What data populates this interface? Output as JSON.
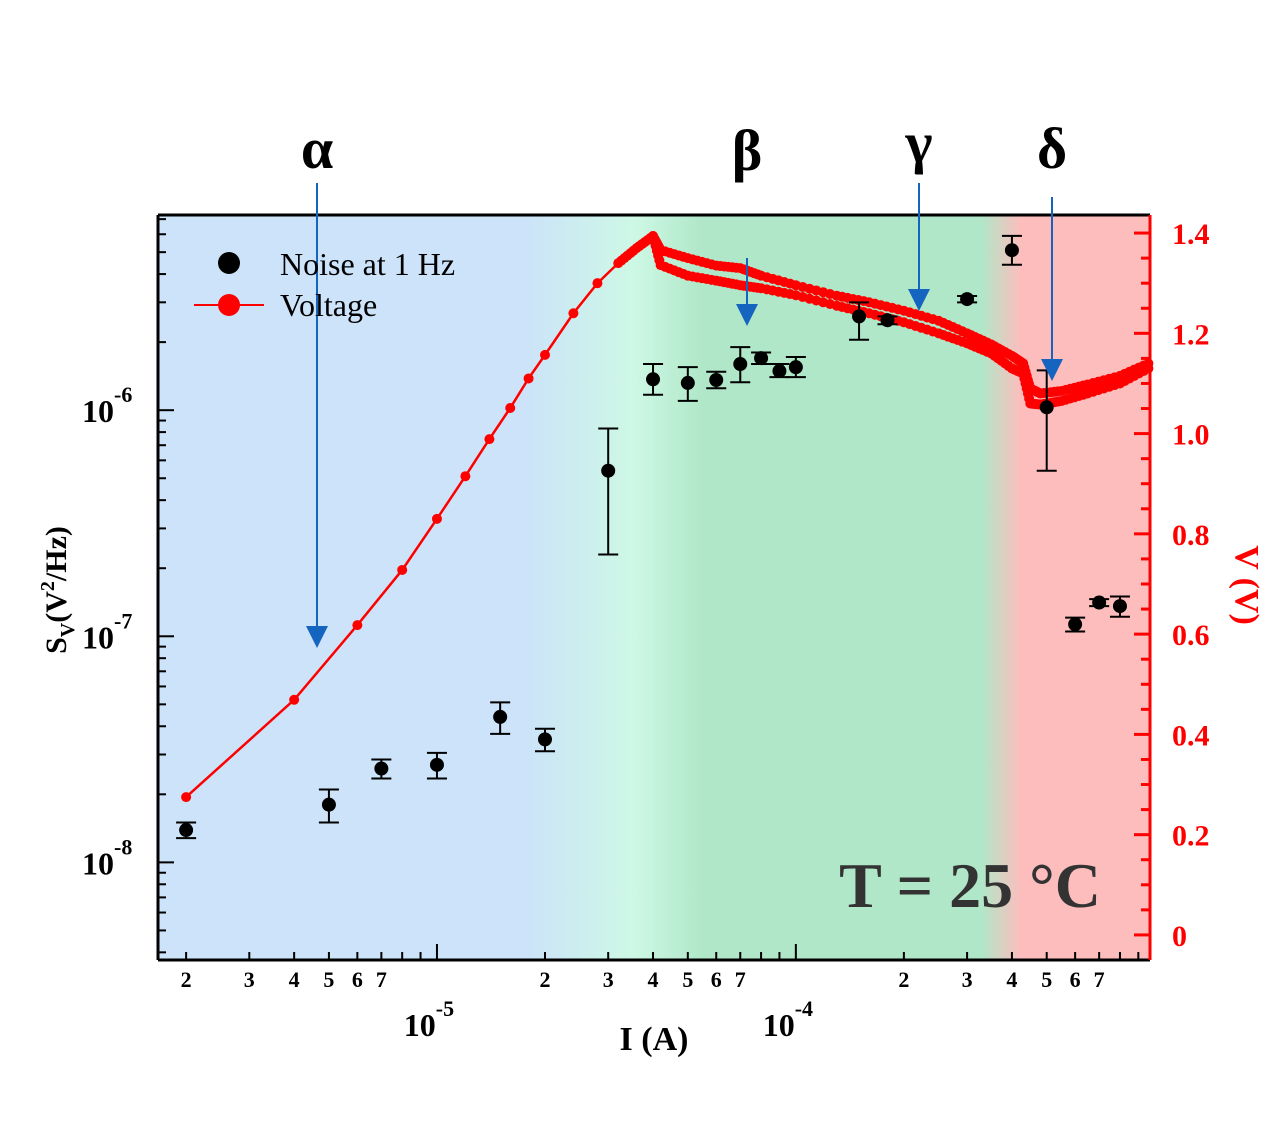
{
  "chart_data": {
    "type": "scatter",
    "xlabel": "I (A)",
    "ylabel": "S",
    "ylabel_sub": "V",
    "ylabel_rest_1": "(V",
    "ylabel_sup": "2",
    "ylabel_rest_2": "/Hz)",
    "y2label": "V (V)",
    "xscale": "log",
    "yscale": "log",
    "xlim": [
      1.67e-06,
      0.00097
    ],
    "ylim": [
      3.7e-09,
      7.3e-06
    ],
    "y2lim": [
      -0.05,
      1.436
    ],
    "grid": false,
    "legend_position": "top-left",
    "annotation": "T = 25 °C",
    "region_labels": [
      "α",
      "β",
      "γ",
      "δ"
    ],
    "x_major_ticks": [
      {
        "base": "10",
        "exp": "-5",
        "value": 1e-05
      },
      {
        "base": "10",
        "exp": "-4",
        "value": 0.0001
      }
    ],
    "x_minor_labels": [
      {
        "t": "2",
        "v": 2e-06
      },
      {
        "t": "3",
        "v": 3e-06
      },
      {
        "t": "4",
        "v": 4e-06
      },
      {
        "t": "5",
        "v": 5e-06
      },
      {
        "t": "6",
        "v": 6e-06
      },
      {
        "t": "7",
        "v": 7e-06
      },
      {
        "t": "2",
        "v": 2e-05
      },
      {
        "t": "3",
        "v": 3e-05
      },
      {
        "t": "4",
        "v": 4e-05
      },
      {
        "t": "5",
        "v": 5e-05
      },
      {
        "t": "6",
        "v": 6e-05
      },
      {
        "t": "7",
        "v": 7e-05
      },
      {
        "t": "2",
        "v": 0.0002
      },
      {
        "t": "3",
        "v": 0.0003
      },
      {
        "t": "4",
        "v": 0.0004
      },
      {
        "t": "5",
        "v": 0.0005
      },
      {
        "t": "6",
        "v": 0.0006
      },
      {
        "t": "7",
        "v": 0.0007
      }
    ],
    "y_major_ticks": [
      {
        "base": "10",
        "exp": "-6",
        "value": 1e-06
      },
      {
        "base": "10",
        "exp": "-7",
        "value": 1e-07
      },
      {
        "base": "10",
        "exp": "-8",
        "value": 1e-08
      }
    ],
    "y2_ticks": [
      "0",
      "0.2",
      "0.4",
      "0.6",
      "0.8",
      "1.0",
      "1.2",
      "1.4"
    ],
    "colors": {
      "noise": "#000000",
      "voltage": "#ff0000",
      "arrow": "#1565c0",
      "annotation": "#333333",
      "bg_blue": "#cce3f9",
      "bg_mint": "#cdf8e5",
      "bg_green": "#b0e7c8",
      "bg_red": "#fdbdbd"
    },
    "series": [
      {
        "name": "Noise at 1 Hz",
        "axis": "left",
        "marker": "circle",
        "x": [
          2e-06,
          5e-06,
          7e-06,
          1e-05,
          1.5e-05,
          2e-05,
          3e-05,
          4e-05,
          5e-05,
          6e-05,
          7e-05,
          8e-05,
          9e-05,
          0.0001,
          0.00015,
          0.00018,
          0.0003,
          0.0004,
          0.0005,
          0.0006,
          0.0007,
          0.0008
        ],
        "y": [
          1.39e-08,
          1.8e-08,
          2.6e-08,
          2.7e-08,
          4.4e-08,
          3.5e-08,
          5.4e-07,
          1.37e-06,
          1.32e-06,
          1.36e-06,
          1.6e-06,
          1.7e-06,
          1.49e-06,
          1.55e-06,
          2.6e-06,
          2.5e-06,
          3.1e-06,
          5.1e-06,
          1.03e-06,
          1.13e-07,
          1.41e-07,
          1.36e-07
        ],
        "err_low": [
          1.28e-08,
          1.5e-08,
          2.35e-08,
          2.35e-08,
          3.7e-08,
          3.1e-08,
          2.3e-07,
          1.17e-06,
          1.1e-06,
          1.25e-06,
          1.33e-06,
          1.6e-06,
          1.4e-06,
          1.4e-06,
          2.05e-06,
          2.4e-06,
          3e-06,
          4.4e-06,
          5.4e-07,
          1.05e-07,
          1.36e-07,
          1.22e-07
        ],
        "err_high": [
          1.5e-08,
          2.1e-08,
          2.85e-08,
          3.05e-08,
          5.1e-08,
          3.9e-08,
          8.3e-07,
          1.6e-06,
          1.55e-06,
          1.48e-06,
          1.9e-06,
          1.8e-06,
          1.6e-06,
          1.72e-06,
          3e-06,
          2.6e-06,
          3.2e-06,
          5.9e-06,
          1.5e-06,
          1.21e-07,
          1.46e-07,
          1.5e-07
        ]
      },
      {
        "name": "Voltage",
        "axis": "right",
        "marker": "circle-line",
        "branches": [
          {
            "x": [
              2e-06,
              4e-06,
              6e-06,
              8e-06,
              1e-05,
              1.2e-05,
              1.4e-05,
              1.6e-05,
              1.8e-05,
              2e-05,
              2.4e-05,
              2.8e-05,
              3.2e-05,
              3.6e-05,
              4e-05,
              4.2e-05,
              5e-05,
              6e-05,
              7e-05,
              8e-05,
              0.0001,
              0.00013,
              0.00016,
              0.0002,
              0.00025,
              0.0003,
              0.00035,
              0.0004,
              0.00043,
              0.00045,
              0.00048,
              0.00055,
              0.00065,
              0.0008,
              0.00096
            ],
            "v": [
              0.275,
              0.469,
              0.618,
              0.728,
              0.83,
              0.915,
              0.989,
              1.051,
              1.11,
              1.157,
              1.24,
              1.3,
              1.34,
              1.37,
              1.394,
              1.366,
              1.35,
              1.335,
              1.33,
              1.315,
              1.296,
              1.275,
              1.262,
              1.245,
              1.225,
              1.2,
              1.178,
              1.155,
              1.14,
              1.09,
              1.08,
              1.085,
              1.098,
              1.115,
              1.14
            ]
          },
          {
            "x": [
              4e-05,
              4.2e-05,
              5e-05,
              6e-05,
              7e-05,
              8e-05,
              0.0001,
              0.00013,
              0.00016,
              0.0002,
              0.00025,
              0.0003,
              0.00035,
              0.0004,
              0.00043,
              0.00045,
              0.00048,
              0.00055,
              0.00065,
              0.0008,
              0.00096
            ],
            "v": [
              1.394,
              1.336,
              1.315,
              1.305,
              1.296,
              1.29,
              1.276,
              1.255,
              1.24,
              1.222,
              1.2,
              1.18,
              1.16,
              1.13,
              1.12,
              1.06,
              1.058,
              1.065,
              1.08,
              1.1,
              1.13
            ]
          }
        ]
      }
    ]
  }
}
